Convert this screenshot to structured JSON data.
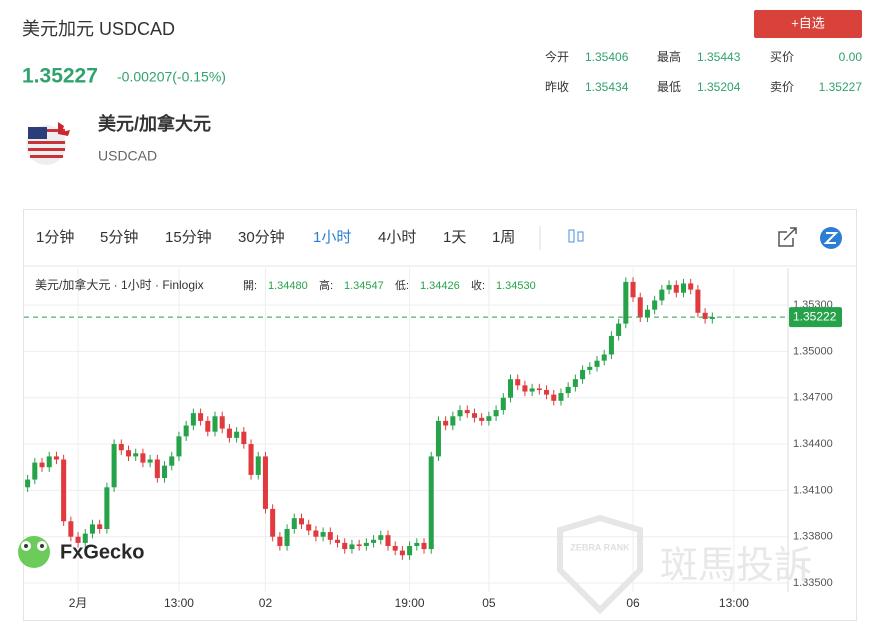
{
  "header": {
    "title": "美元加元 USDCAD",
    "price": "1.35227",
    "change": "-0.00207(-0.15%)",
    "button": "+自选",
    "name": "美元/加拿大元",
    "code": "USDCAD",
    "stats": [
      [
        "今开",
        "1.35406",
        "最高",
        "1.35443",
        "买价",
        "0.00"
      ],
      [
        "昨收",
        "1.35434",
        "最低",
        "1.35204",
        "卖价",
        "1.35227"
      ]
    ]
  },
  "toolbar": {
    "intervals": [
      "1分钟",
      "5分钟",
      "15分钟",
      "30分钟",
      "1小时",
      "4小时",
      "1天",
      "1周"
    ],
    "active": 4
  },
  "watermarks": {
    "logo": "FxGecko",
    "badge": "ZEBRA RANK",
    "brand": "斑馬投訴"
  },
  "chart_data": {
    "type": "candlestick",
    "legend": {
      "name": "美元/加拿大元 · 1小时 · Finlogix",
      "items": [
        [
          "開:",
          "1.34480"
        ],
        [
          "高:",
          "1.34547"
        ],
        [
          "低:",
          "1.34426"
        ],
        [
          "收:",
          "1.34530"
        ]
      ]
    },
    "up_color": "#26a24a",
    "down_color": "#e03a3e",
    "grid": true,
    "xlim": [
      -0.5,
      105.5
    ],
    "ylim": [
      1.33442,
      1.3554
    ],
    "xticks": [
      {
        "value": 7,
        "label": "2月"
      },
      {
        "value": 21,
        "label": "13:00"
      },
      {
        "value": 33,
        "label": "02"
      },
      {
        "value": 53,
        "label": "19:00"
      },
      {
        "value": 64,
        "label": "05"
      },
      {
        "value": 84,
        "label": "06"
      },
      {
        "value": 98,
        "label": "13:00"
      }
    ],
    "yticks": [
      {
        "value": 1.335,
        "label": "1.33500"
      },
      {
        "value": 1.338,
        "label": "1.33800"
      },
      {
        "value": 1.341,
        "label": "1.34100"
      },
      {
        "value": 1.344,
        "label": "1.34400"
      },
      {
        "value": 1.347,
        "label": "1.34700"
      },
      {
        "value": 1.35,
        "label": "1.35000"
      },
      {
        "value": 1.353,
        "label": "1.35300"
      }
    ],
    "last_price": {
      "value": 1.35222,
      "label": "1.35222"
    },
    "open": [
      1.3412,
      1.3417,
      1.3428,
      1.3425,
      1.3432,
      1.343,
      1.339,
      1.338,
      1.3376,
      1.3382,
      1.3388,
      1.3385,
      1.3412,
      1.344,
      1.3436,
      1.3432,
      1.3434,
      1.3428,
      1.343,
      1.3418,
      1.3426,
      1.3432,
      1.3445,
      1.3452,
      1.346,
      1.3455,
      1.3448,
      1.3458,
      1.345,
      1.3444,
      1.3448,
      1.344,
      1.342,
      1.3432,
      1.3398,
      1.338,
      1.3374,
      1.3385,
      1.3392,
      1.3388,
      1.3384,
      1.338,
      1.3383,
      1.3378,
      1.3376,
      1.3372,
      1.3375,
      1.3374,
      1.3376,
      1.3378,
      1.3381,
      1.3374,
      1.3371,
      1.3368,
      1.3374,
      1.3376,
      1.3372,
      1.3432,
      1.3455,
      1.3452,
      1.3458,
      1.3462,
      1.346,
      1.3457,
      1.3455,
      1.3458,
      1.3462,
      1.347,
      1.3482,
      1.3478,
      1.3474,
      1.3476,
      1.3475,
      1.3472,
      1.3468,
      1.3473,
      1.3477,
      1.3482,
      1.3488,
      1.349,
      1.3494,
      1.3498,
      1.351,
      1.3518,
      1.3545,
      1.3535,
      1.3522,
      1.3527,
      1.3533,
      1.354,
      1.3543,
      1.3538,
      1.3544,
      1.354,
      1.3525,
      1.3521
    ],
    "high": [
      1.342,
      1.3431,
      1.3431,
      1.3435,
      1.3435,
      1.3433,
      1.3393,
      1.3383,
      1.3385,
      1.3391,
      1.3391,
      1.3415,
      1.3443,
      1.3443,
      1.3439,
      1.3437,
      1.3437,
      1.3433,
      1.3433,
      1.3429,
      1.3435,
      1.3448,
      1.3455,
      1.3463,
      1.3463,
      1.3458,
      1.3461,
      1.3461,
      1.3453,
      1.3451,
      1.3451,
      1.3443,
      1.3435,
      1.3435,
      1.3401,
      1.3383,
      1.3388,
      1.3395,
      1.3395,
      1.3391,
      1.3387,
      1.3386,
      1.3386,
      1.3381,
      1.3379,
      1.3378,
      1.3378,
      1.3379,
      1.3381,
      1.3384,
      1.3384,
      1.3377,
      1.3374,
      1.3377,
      1.3379,
      1.3379,
      1.3435,
      1.3458,
      1.3458,
      1.3461,
      1.3465,
      1.3465,
      1.3463,
      1.346,
      1.3461,
      1.3465,
      1.3473,
      1.3485,
      1.3485,
      1.3481,
      1.3479,
      1.3479,
      1.3478,
      1.3475,
      1.3476,
      1.348,
      1.3485,
      1.3491,
      1.3493,
      1.3497,
      1.3501,
      1.3513,
      1.3521,
      1.3548,
      1.3548,
      1.3538,
      1.353,
      1.3536,
      1.3543,
      1.3546,
      1.3546,
      1.3547,
      1.3547,
      1.3543,
      1.3528,
      1.35252
    ],
    "low": [
      1.3409,
      1.3414,
      1.3422,
      1.3422,
      1.3427,
      1.3387,
      1.3377,
      1.3373,
      1.3373,
      1.3379,
      1.3382,
      1.3382,
      1.3409,
      1.3433,
      1.3429,
      1.3429,
      1.3425,
      1.3425,
      1.3415,
      1.3415,
      1.3423,
      1.3429,
      1.3442,
      1.3449,
      1.3452,
      1.3445,
      1.3445,
      1.3447,
      1.3441,
      1.3441,
      1.3437,
      1.3417,
      1.3417,
      1.3395,
      1.3377,
      1.3371,
      1.3371,
      1.3382,
      1.3385,
      1.3381,
      1.3377,
      1.3377,
      1.3375,
      1.3373,
      1.3369,
      1.3369,
      1.3371,
      1.3371,
      1.3373,
      1.3375,
      1.3371,
      1.3368,
      1.3365,
      1.3365,
      1.3371,
      1.3369,
      1.3369,
      1.3429,
      1.3449,
      1.3449,
      1.3455,
      1.3457,
      1.3454,
      1.3452,
      1.3452,
      1.3455,
      1.3459,
      1.3467,
      1.3475,
      1.3471,
      1.3471,
      1.3472,
      1.3469,
      1.3465,
      1.3465,
      1.347,
      1.3474,
      1.3479,
      1.3485,
      1.3487,
      1.3491,
      1.3495,
      1.3507,
      1.3515,
      1.3532,
      1.3519,
      1.3519,
      1.3524,
      1.353,
      1.3537,
      1.3535,
      1.3535,
      1.3537,
      1.3522,
      1.3518,
      1.3518
    ],
    "close": [
      1.3417,
      1.3428,
      1.3425,
      1.3432,
      1.343,
      1.339,
      1.338,
      1.3376,
      1.3382,
      1.3388,
      1.3385,
      1.3412,
      1.344,
      1.3436,
      1.3432,
      1.3434,
      1.3428,
      1.343,
      1.3418,
      1.3426,
      1.3432,
      1.3445,
      1.3452,
      1.346,
      1.3455,
      1.3448,
      1.3458,
      1.345,
      1.3444,
      1.3448,
      1.344,
      1.342,
      1.3432,
      1.3398,
      1.338,
      1.3374,
      1.3385,
      1.3392,
      1.3388,
      1.3384,
      1.338,
      1.3383,
      1.3378,
      1.3376,
      1.3372,
      1.3375,
      1.3374,
      1.3376,
      1.3378,
      1.3381,
      1.3374,
      1.3371,
      1.3368,
      1.3374,
      1.3376,
      1.3372,
      1.3432,
      1.3455,
      1.3452,
      1.3458,
      1.3462,
      1.346,
      1.3457,
      1.3455,
      1.3458,
      1.3462,
      1.347,
      1.3482,
      1.3478,
      1.3474,
      1.3476,
      1.3475,
      1.3472,
      1.3468,
      1.3473,
      1.3477,
      1.3482,
      1.3488,
      1.349,
      1.3494,
      1.3498,
      1.351,
      1.3518,
      1.3545,
      1.3535,
      1.3522,
      1.3527,
      1.3533,
      1.354,
      1.3543,
      1.3538,
      1.3544,
      1.354,
      1.3525,
      1.3521,
      1.35222
    ]
  }
}
